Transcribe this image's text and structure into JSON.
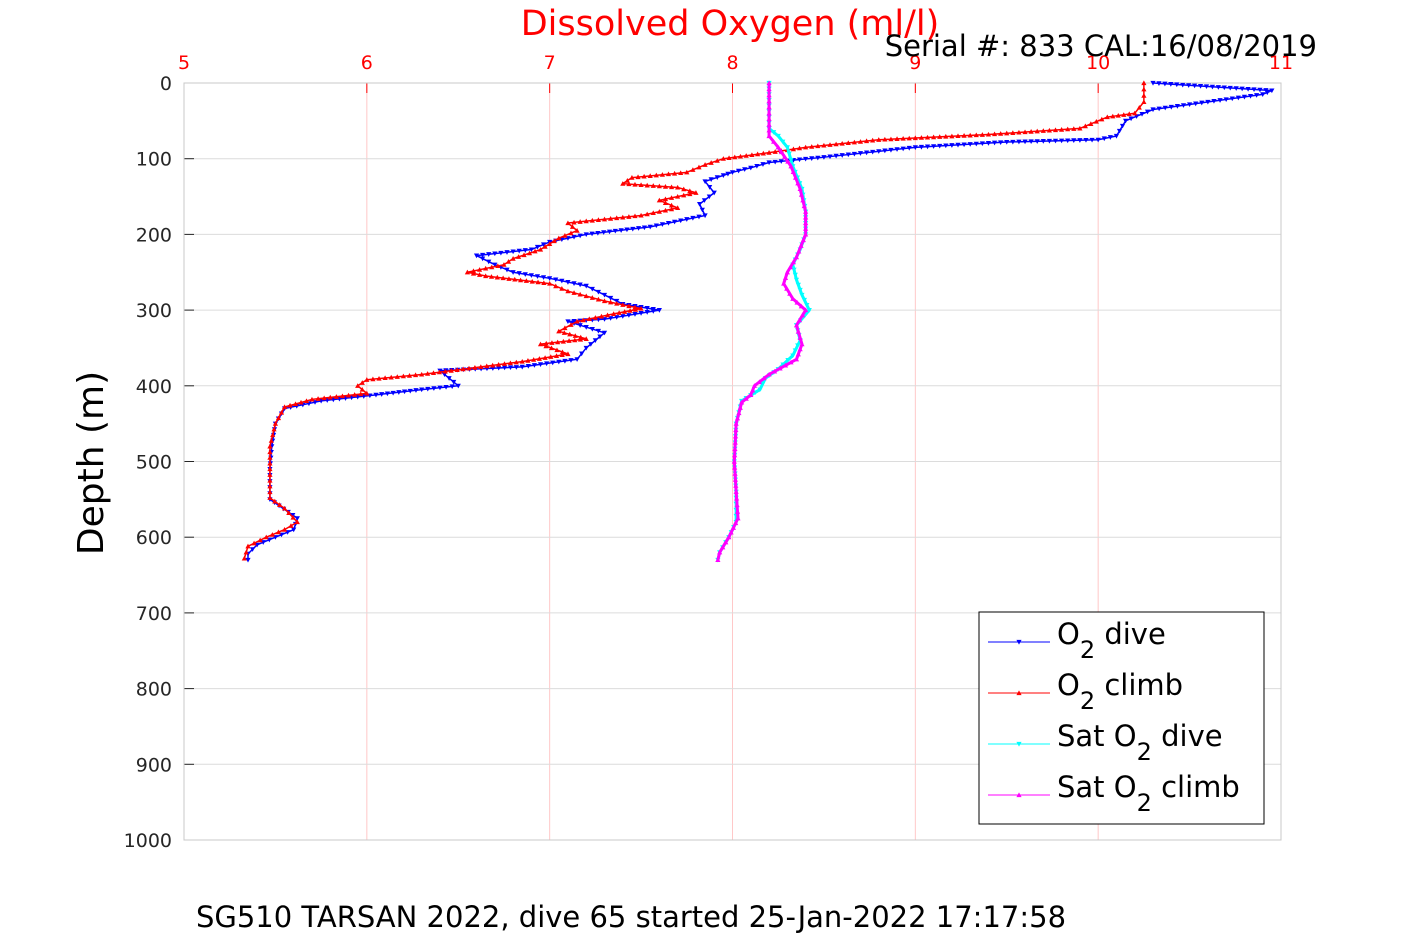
{
  "chart_data": {
    "type": "line",
    "title": "Dissolved Oxygen (ml/l)",
    "subtitle": "Serial #: 833  CAL:16/08/2019",
    "caption": "SG510 TARSAN 2022, dive 65 started 25-Jan-2022 17:17:58",
    "xlabel": "",
    "ylabel": "Depth (m)",
    "xlim": [
      5,
      11
    ],
    "ylim": [
      0,
      1000
    ],
    "y_reversed": true,
    "x_axis_position": "top",
    "x_ticks": [
      "5",
      "6",
      "7",
      "8",
      "9",
      "10",
      "11"
    ],
    "y_ticks": [
      "0",
      "100",
      "200",
      "300",
      "400",
      "500",
      "600",
      "700",
      "800",
      "900",
      "1000"
    ],
    "grid": true,
    "legend_position": "bottom-right",
    "colors": {
      "title": "#ff0000",
      "x_ticks": "#ff0000",
      "grid_x": "#ffc8c8",
      "grid_y": "#dcdcdc"
    },
    "series": [
      {
        "name": "O2 dive",
        "name_main": "O",
        "name_sub": "2",
        "name_rest": " dive",
        "color": "#0000ff",
        "marker": "triangle-down",
        "points": [
          [
            10.3,
            0
          ],
          [
            10.95,
            10
          ],
          [
            10.9,
            15
          ],
          [
            10.3,
            35
          ],
          [
            10.15,
            50
          ],
          [
            10.1,
            70
          ],
          [
            10.0,
            75
          ],
          [
            9.5,
            78
          ],
          [
            9.0,
            85
          ],
          [
            8.5,
            98
          ],
          [
            8.2,
            105
          ],
          [
            8.1,
            112
          ],
          [
            8.0,
            118
          ],
          [
            7.95,
            122
          ],
          [
            7.85,
            130
          ],
          [
            7.9,
            145
          ],
          [
            7.82,
            160
          ],
          [
            7.85,
            175
          ],
          [
            7.55,
            190
          ],
          [
            7.2,
            200
          ],
          [
            7.0,
            210
          ],
          [
            6.9,
            220
          ],
          [
            6.6,
            228
          ],
          [
            6.7,
            240
          ],
          [
            6.8,
            250
          ],
          [
            7.0,
            258
          ],
          [
            7.2,
            268
          ],
          [
            7.3,
            280
          ],
          [
            7.4,
            292
          ],
          [
            7.6,
            300
          ],
          [
            7.3,
            312
          ],
          [
            7.1,
            315
          ],
          [
            7.3,
            330
          ],
          [
            7.25,
            340
          ],
          [
            7.2,
            350
          ],
          [
            7.15,
            365
          ],
          [
            6.85,
            375
          ],
          [
            6.4,
            380
          ],
          [
            6.5,
            400
          ],
          [
            6.3,
            405
          ],
          [
            6.05,
            412
          ],
          [
            5.75,
            420
          ],
          [
            5.55,
            430
          ],
          [
            5.5,
            450
          ],
          [
            5.48,
            480
          ],
          [
            5.47,
            510
          ],
          [
            5.47,
            550
          ],
          [
            5.62,
            575
          ],
          [
            5.6,
            590
          ],
          [
            5.5,
            600
          ],
          [
            5.4,
            610
          ],
          [
            5.35,
            622
          ],
          [
            5.35,
            630
          ]
        ]
      },
      {
        "name": "O2 climb",
        "name_main": "O",
        "name_sub": "2",
        "name_rest": " climb",
        "color": "#ff0000",
        "marker": "triangle-up",
        "points": [
          [
            10.25,
            0
          ],
          [
            10.25,
            25
          ],
          [
            10.2,
            40
          ],
          [
            10.05,
            45
          ],
          [
            9.9,
            60
          ],
          [
            9.4,
            68
          ],
          [
            8.8,
            75
          ],
          [
            8.4,
            85
          ],
          [
            8.2,
            92
          ],
          [
            7.95,
            100
          ],
          [
            7.85,
            108
          ],
          [
            7.75,
            118
          ],
          [
            7.45,
            125
          ],
          [
            7.4,
            133
          ],
          [
            7.7,
            138
          ],
          [
            7.8,
            145
          ],
          [
            7.6,
            155
          ],
          [
            7.7,
            165
          ],
          [
            7.5,
            175
          ],
          [
            7.3,
            180
          ],
          [
            7.1,
            185
          ],
          [
            7.15,
            195
          ],
          [
            7.05,
            205
          ],
          [
            6.95,
            220
          ],
          [
            6.8,
            232
          ],
          [
            6.75,
            240
          ],
          [
            6.55,
            250
          ],
          [
            6.65,
            255
          ],
          [
            7.0,
            265
          ],
          [
            7.1,
            275
          ],
          [
            7.3,
            288
          ],
          [
            7.5,
            298
          ],
          [
            7.35,
            305
          ],
          [
            7.15,
            315
          ],
          [
            7.05,
            328
          ],
          [
            7.2,
            338
          ],
          [
            6.95,
            345
          ],
          [
            7.1,
            358
          ],
          [
            6.85,
            368
          ],
          [
            6.3,
            385
          ],
          [
            6.0,
            392
          ],
          [
            5.95,
            400
          ],
          [
            6.0,
            410
          ],
          [
            5.7,
            418
          ],
          [
            5.55,
            428
          ],
          [
            5.5,
            450
          ],
          [
            5.47,
            480
          ],
          [
            5.47,
            510
          ],
          [
            5.47,
            548
          ],
          [
            5.55,
            562
          ],
          [
            5.62,
            580
          ],
          [
            5.55,
            590
          ],
          [
            5.45,
            600
          ],
          [
            5.35,
            612
          ],
          [
            5.33,
            628
          ]
        ]
      },
      {
        "name": "Sat O2 dive",
        "name_main": "Sat O",
        "name_sub": "2",
        "name_rest": " dive",
        "color": "#00ffff",
        "marker": "triangle-down",
        "points": [
          [
            8.2,
            0
          ],
          [
            8.2,
            30
          ],
          [
            8.2,
            60
          ],
          [
            8.25,
            70
          ],
          [
            8.3,
            85
          ],
          [
            8.33,
            110
          ],
          [
            8.38,
            140
          ],
          [
            8.4,
            170
          ],
          [
            8.4,
            200
          ],
          [
            8.37,
            220
          ],
          [
            8.33,
            240
          ],
          [
            8.35,
            260
          ],
          [
            8.38,
            280
          ],
          [
            8.42,
            300
          ],
          [
            8.35,
            320
          ],
          [
            8.37,
            340
          ],
          [
            8.33,
            360
          ],
          [
            8.25,
            378
          ],
          [
            8.18,
            390
          ],
          [
            8.15,
            405
          ],
          [
            8.05,
            420
          ],
          [
            8.02,
            450
          ],
          [
            8.01,
            500
          ],
          [
            8.02,
            540
          ],
          [
            8.02,
            580
          ],
          [
            7.98,
            600
          ],
          [
            7.93,
            620
          ],
          [
            7.92,
            630
          ]
        ]
      },
      {
        "name": "Sat O2 climb",
        "name_main": "Sat O",
        "name_sub": "2",
        "name_rest": " climb",
        "color": "#ff00ff",
        "marker": "triangle-up",
        "points": [
          [
            8.2,
            0
          ],
          [
            8.2,
            40
          ],
          [
            8.2,
            70
          ],
          [
            8.25,
            85
          ],
          [
            8.32,
            110
          ],
          [
            8.37,
            140
          ],
          [
            8.4,
            170
          ],
          [
            8.4,
            200
          ],
          [
            8.35,
            230
          ],
          [
            8.3,
            250
          ],
          [
            8.28,
            265
          ],
          [
            8.33,
            285
          ],
          [
            8.4,
            300
          ],
          [
            8.35,
            320
          ],
          [
            8.38,
            345
          ],
          [
            8.35,
            365
          ],
          [
            8.2,
            385
          ],
          [
            8.12,
            400
          ],
          [
            8.1,
            412
          ],
          [
            8.05,
            422
          ],
          [
            8.02,
            450
          ],
          [
            8.01,
            500
          ],
          [
            8.02,
            540
          ],
          [
            8.03,
            575
          ],
          [
            7.98,
            600
          ],
          [
            7.93,
            620
          ],
          [
            7.92,
            630
          ]
        ]
      }
    ]
  }
}
